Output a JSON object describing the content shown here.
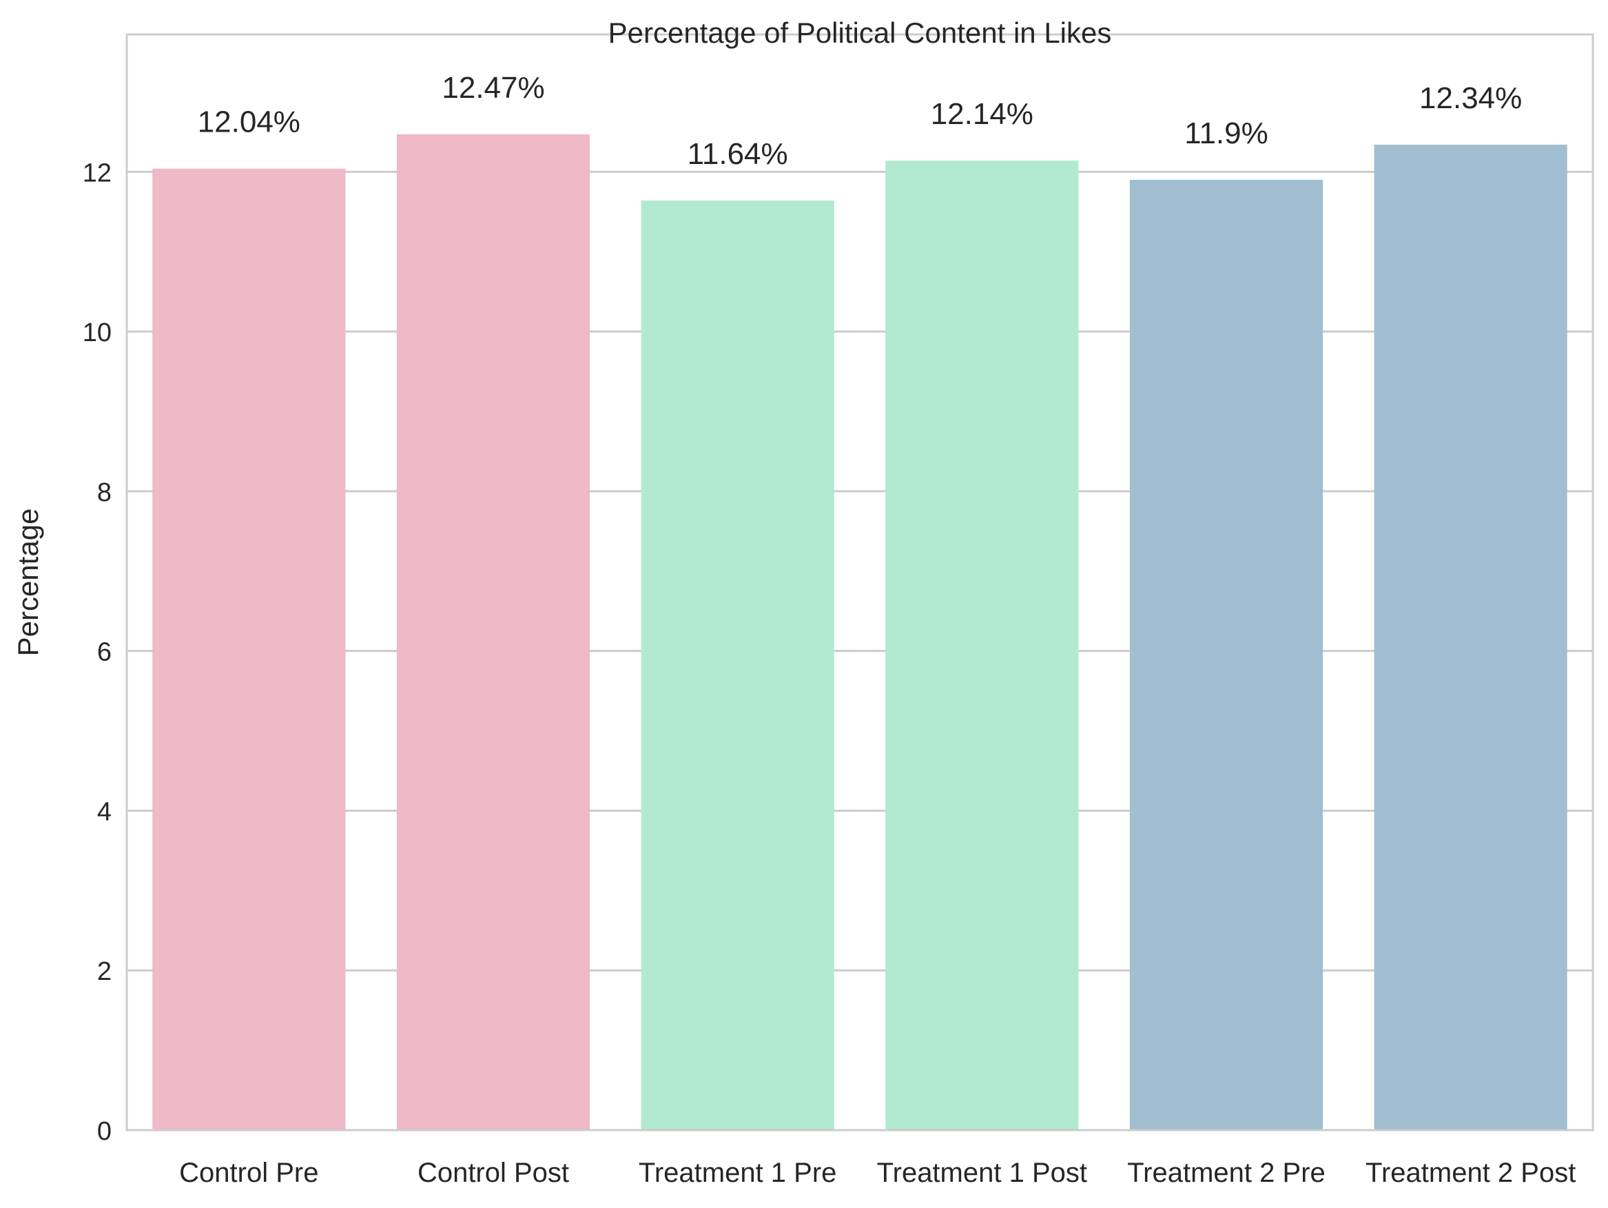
{
  "chart_data": {
    "type": "bar",
    "title": "Percentage of Political Content in Likes",
    "xlabel": "",
    "ylabel": "Percentage",
    "categories": [
      "Control Pre",
      "Control Post",
      "Treatment 1 Pre",
      "Treatment 1 Post",
      "Treatment 2 Pre",
      "Treatment 2 Post"
    ],
    "values": [
      12.04,
      12.47,
      11.64,
      12.14,
      11.9,
      12.34
    ],
    "value_labels": [
      "12.04%",
      "12.47%",
      "11.64%",
      "12.14%",
      "11.9%",
      "12.34%"
    ],
    "bar_colors": [
      "#efb9c7",
      "#efb9c7",
      "#b2ead0",
      "#b2ead0",
      "#a0becf",
      "#a0becf"
    ],
    "ylim": [
      0,
      13.72
    ],
    "yticks": [
      0,
      2,
      4,
      6,
      8,
      10,
      12
    ],
    "ytick_labels": [
      "0",
      "2",
      "4",
      "6",
      "8",
      "10",
      "12"
    ],
    "grid": "horizontal",
    "grid_color": "#cccccc",
    "spine_color": "#cccccc",
    "legend": "none"
  }
}
